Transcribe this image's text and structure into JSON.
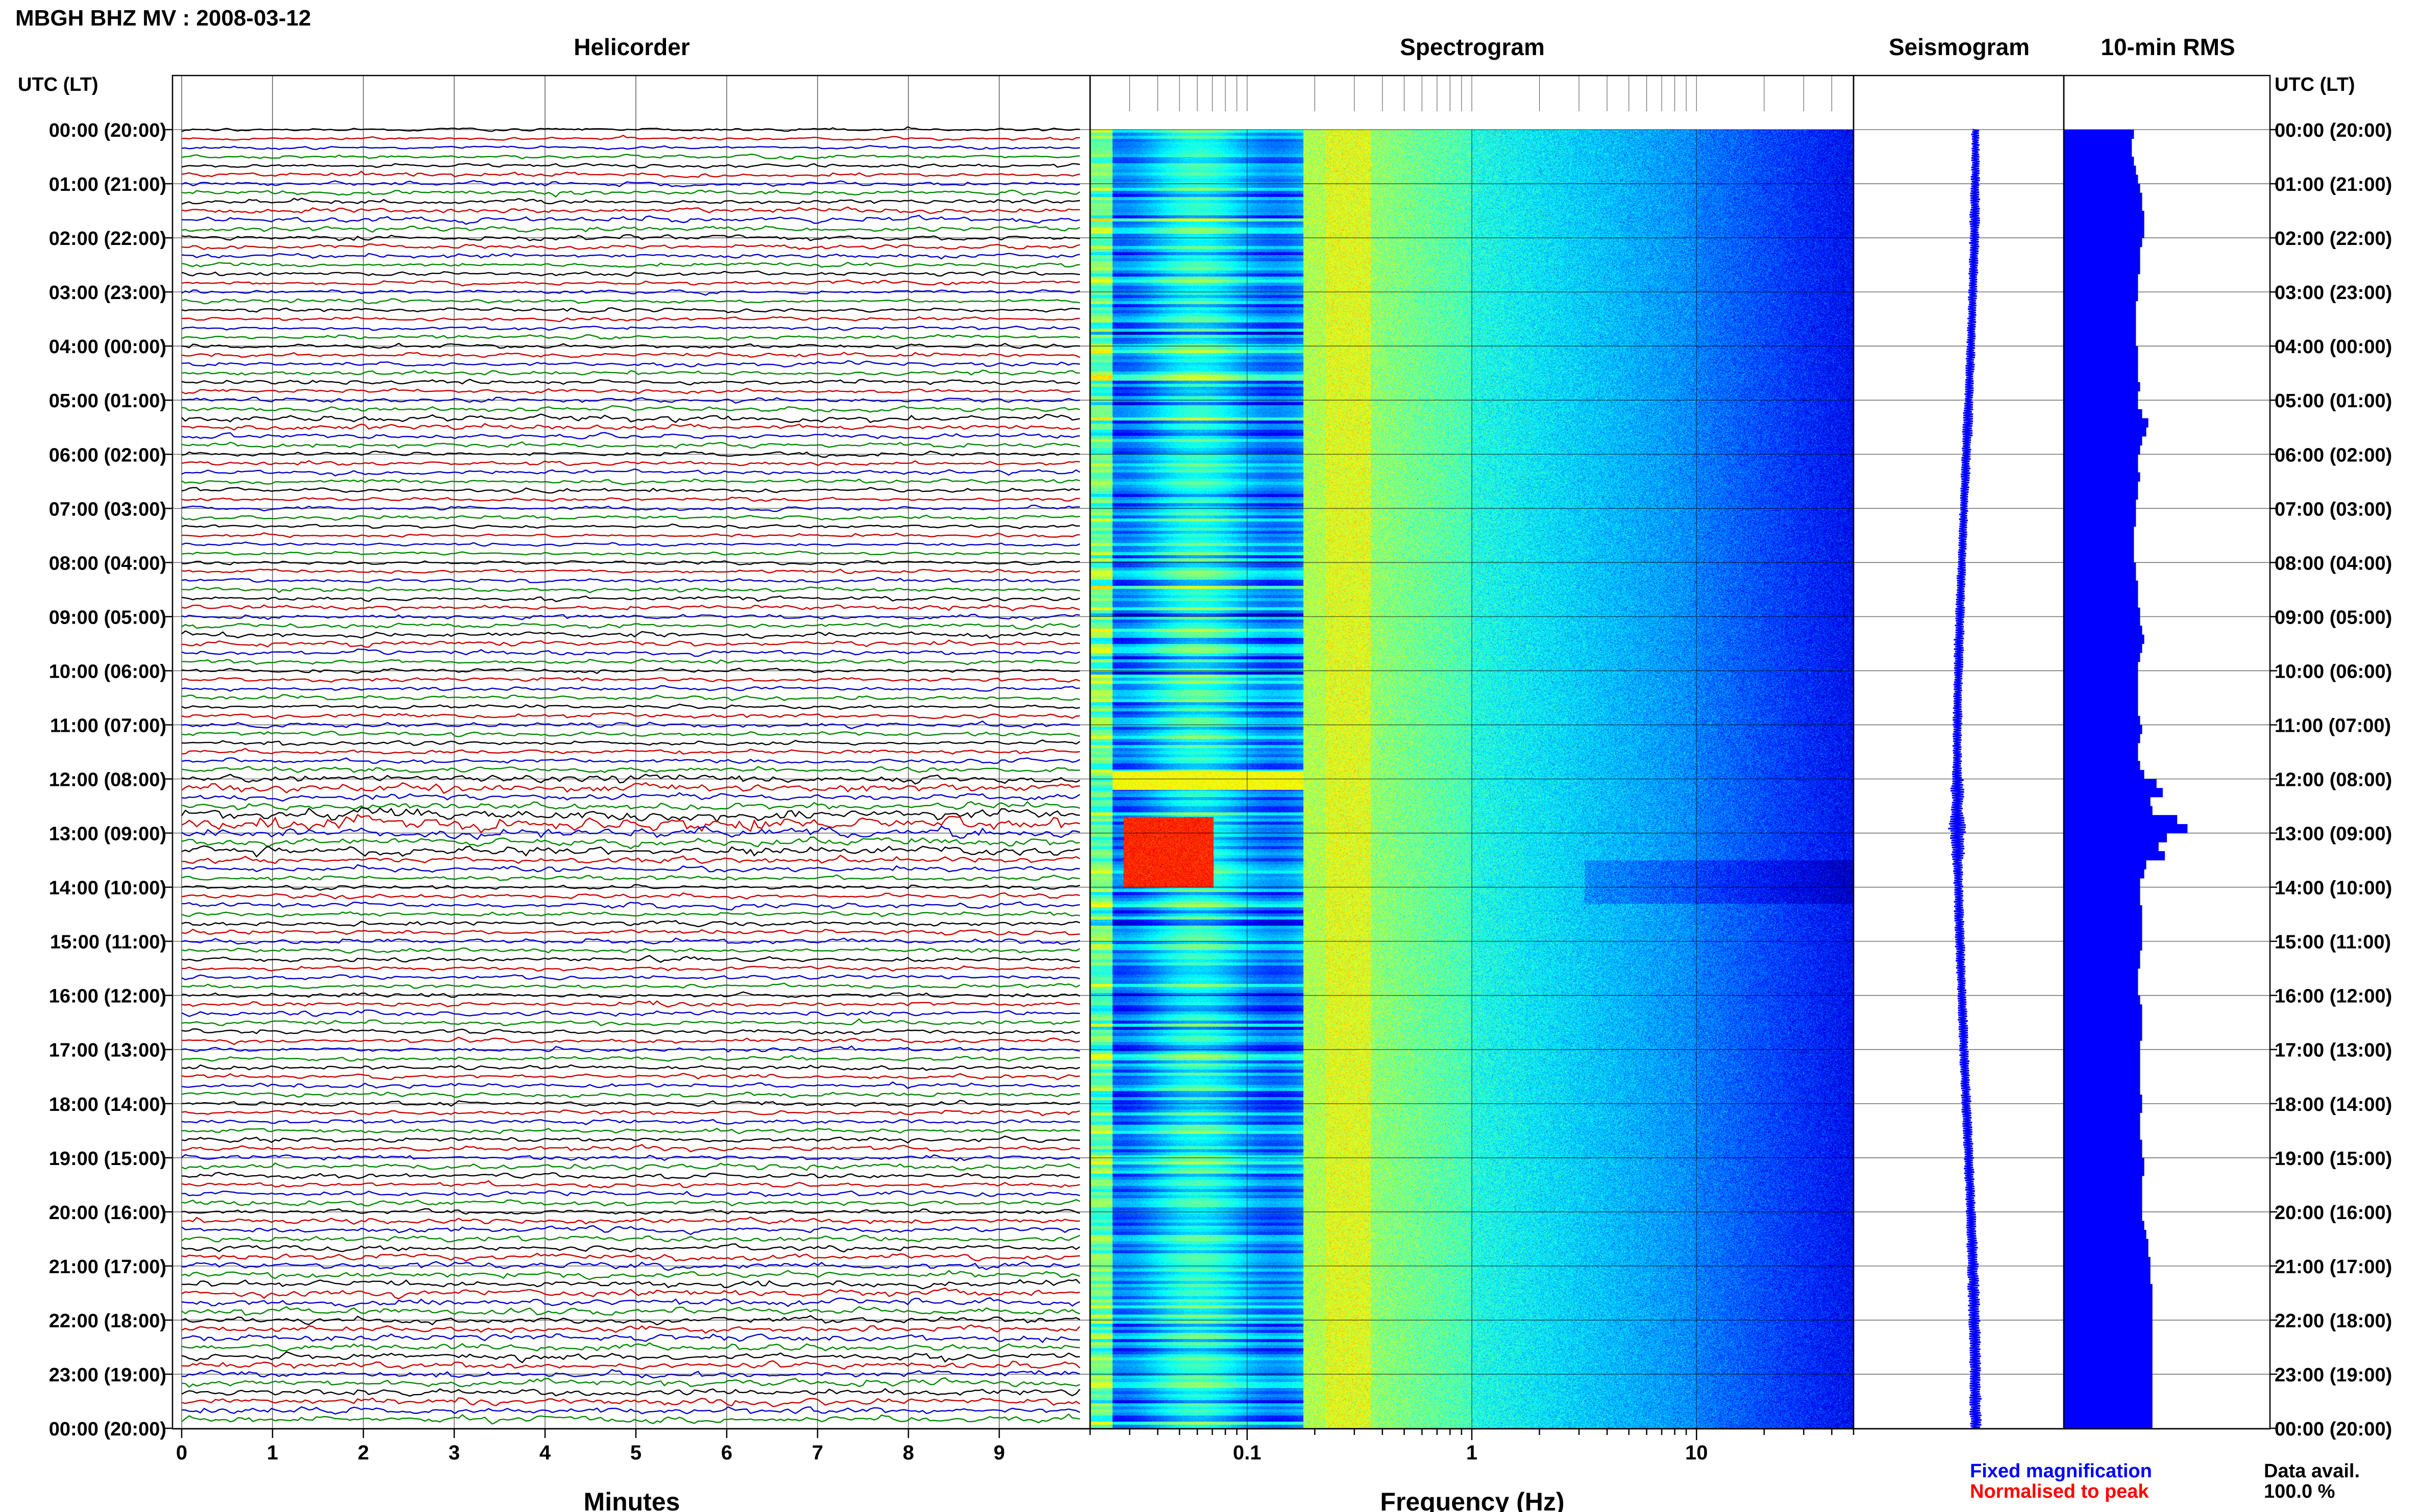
{
  "chart_data": {
    "type": "heatmap",
    "title": "MBGH BHZ MV : 2008-03-12",
    "row_axis_label": "UTC (LT)",
    "hour_labels": [
      "00:00 (20:00)",
      "01:00 (21:00)",
      "02:00 (22:00)",
      "03:00 (23:00)",
      "04:00 (00:00)",
      "05:00 (01:00)",
      "06:00 (02:00)",
      "07:00 (03:00)",
      "08:00 (04:00)",
      "09:00 (05:00)",
      "10:00 (06:00)",
      "11:00 (07:00)",
      "12:00 (08:00)",
      "13:00 (09:00)",
      "14:00 (10:00)",
      "15:00 (11:00)",
      "16:00 (12:00)",
      "17:00 (13:00)",
      "18:00 (14:00)",
      "19:00 (15:00)",
      "20:00 (16:00)",
      "21:00 (17:00)",
      "22:00 (18:00)",
      "23:00 (19:00)",
      "00:00 (20:00)"
    ],
    "panels": {
      "helicorder": {
        "title": "Helicorder",
        "xlabel": "Minutes",
        "xticks": [
          "0",
          "1",
          "2",
          "3",
          "4",
          "5",
          "6",
          "7",
          "8",
          "9"
        ],
        "xlim": [
          0,
          10
        ],
        "trace_colors": [
          "#000000",
          "#cc0000",
          "#0000cc",
          "#008800"
        ],
        "rows": 144,
        "row_minutes": 10
      },
      "spectrogram": {
        "title": "Spectrogram",
        "xlabel": "Frequency (Hz)",
        "xscale": "log",
        "xlim": [
          0.02,
          50
        ],
        "xticks": [
          "0.1",
          "1",
          "10"
        ]
      },
      "seismogram": {
        "title": "Seismogram"
      },
      "rms": {
        "title": "10-min RMS",
        "values": [
          0.34,
          0.33,
          0.33,
          0.34,
          0.35,
          0.36,
          0.37,
          0.38,
          0.38,
          0.39,
          0.39,
          0.39,
          0.38,
          0.37,
          0.37,
          0.37,
          0.36,
          0.36,
          0.36,
          0.35,
          0.35,
          0.35,
          0.35,
          0.35,
          0.36,
          0.36,
          0.36,
          0.36,
          0.37,
          0.36,
          0.36,
          0.38,
          0.41,
          0.4,
          0.38,
          0.37,
          0.36,
          0.36,
          0.37,
          0.36,
          0.36,
          0.35,
          0.35,
          0.35,
          0.34,
          0.34,
          0.34,
          0.34,
          0.35,
          0.35,
          0.36,
          0.36,
          0.36,
          0.37,
          0.37,
          0.38,
          0.39,
          0.38,
          0.37,
          0.36,
          0.36,
          0.36,
          0.36,
          0.36,
          0.36,
          0.37,
          0.38,
          0.37,
          0.36,
          0.36,
          0.37,
          0.39,
          0.45,
          0.48,
          0.42,
          0.43,
          0.55,
          0.6,
          0.5,
          0.46,
          0.49,
          0.4,
          0.39,
          0.37,
          0.37,
          0.37,
          0.38,
          0.38,
          0.38,
          0.38,
          0.38,
          0.37,
          0.37,
          0.36,
          0.36,
          0.36,
          0.37,
          0.38,
          0.38,
          0.38,
          0.38,
          0.37,
          0.37,
          0.37,
          0.37,
          0.37,
          0.37,
          0.38,
          0.38,
          0.37,
          0.37,
          0.37,
          0.38,
          0.38,
          0.39,
          0.39,
          0.38,
          0.38,
          0.38,
          0.38,
          0.38,
          0.39,
          0.4,
          0.41,
          0.41,
          0.42,
          0.42,
          0.42,
          0.43,
          0.43,
          0.43,
          0.43,
          0.43,
          0.43,
          0.43,
          0.43,
          0.43,
          0.43,
          0.43,
          0.43,
          0.43,
          0.43,
          0.43,
          0.43
        ]
      }
    },
    "legend": {
      "fixed": "Fixed magnification",
      "fixed_color": "#0000ff",
      "normalised": "Normalised to peak",
      "normalised_color": "#ff0000"
    },
    "data_avail": {
      "label": "Data avail.",
      "value": "100.0 %"
    }
  }
}
